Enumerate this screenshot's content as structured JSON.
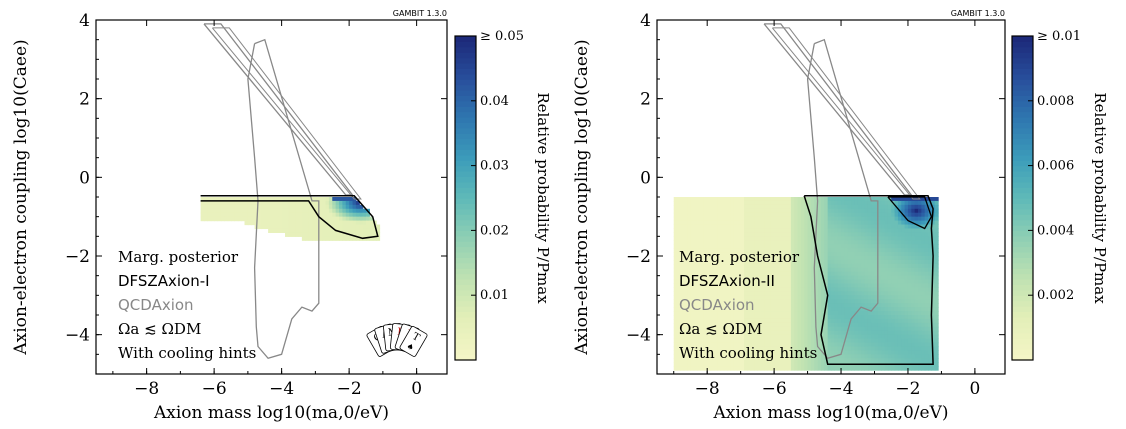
{
  "colors": {
    "cmap": [
      "#f4f5c6",
      "#e3efb8",
      "#bfe2b2",
      "#8fcfb4",
      "#5fbab8",
      "#3c9cba",
      "#2f77b0",
      "#284f9c",
      "#1d2a7a"
    ],
    "qcd_contour": "#888888",
    "dfsz_contour": "#000000"
  },
  "chart_data": [
    {
      "type": "heatmap",
      "gambit_label": "GAMBIT 1.3.0",
      "xlabel": "Axion mass log10(ma,0/eV)",
      "ylabel": "Axion-electron coupling log10(Caee)",
      "xlim": [
        -9.5,
        0.9
      ],
      "ylim": [
        -5.0,
        4.0
      ],
      "xticks": [
        "−8",
        "−6",
        "−4",
        "−2",
        "0"
      ],
      "xtick_values": [
        -8,
        -6,
        -4,
        -2,
        0
      ],
      "yticks": [
        "−4",
        "−2",
        "0",
        "2",
        "4"
      ],
      "ytick_values": [
        -4,
        -2,
        0,
        2,
        4
      ],
      "colorbar": {
        "label": "Relative probability P/Pmax",
        "range": [
          0,
          0.05
        ],
        "ticks": [
          "0.01",
          "0.02",
          "0.03",
          "0.04",
          "≥ 0.05"
        ],
        "tick_values": [
          0.01,
          0.02,
          0.03,
          0.04,
          0.05
        ]
      },
      "legend": {
        "placement": "lower-left",
        "lines": [
          {
            "text": "Marg. posterior",
            "style": "serif",
            "color": "#000000"
          },
          {
            "text": "DFSZAxion-I",
            "style": "sans",
            "color": "#000000"
          },
          {
            "text": "QCDAxion",
            "style": "sans",
            "color": "#888888"
          },
          {
            "text": "Ωa ≲ ΩDM",
            "style": "serif",
            "color": "#000000"
          },
          {
            "text": "With cooling hints",
            "style": "serif",
            "color": "#000000"
          }
        ]
      },
      "has_logo": true,
      "logo_text": "GAMBIT",
      "region": {
        "top": -0.5,
        "xmin": -6.4,
        "bottom_boundary": [
          [
            -5.5,
            -1.0
          ],
          [
            -4.5,
            -1.3
          ],
          [
            -3.5,
            -1.5
          ],
          [
            -2.5,
            -1.55
          ],
          [
            -1.5,
            -1.6
          ],
          [
            -1.1,
            -1.6
          ]
        ],
        "right_boundary": [
          [
            -1.9,
            -0.5
          ],
          [
            -1.5,
            -0.8
          ],
          [
            -1.2,
            -1.2
          ],
          [
            -1.1,
            -1.6
          ]
        ],
        "hot_spot": {
          "x": -1.7,
          "y": -0.6,
          "value": 0.05
        }
      },
      "dfsz_contour": [
        [
          -6.4,
          -0.47
        ],
        [
          -1.85,
          -0.47
        ],
        [
          -1.3,
          -1.0
        ],
        [
          -1.15,
          -1.5
        ],
        [
          -1.6,
          -1.55
        ],
        [
          -2.4,
          -1.35
        ],
        [
          -2.9,
          -1.0
        ],
        [
          -3.2,
          -0.6
        ],
        [
          -6.4,
          -0.6
        ]
      ],
      "qcd_outline": [
        [
          -4.8,
          3.4
        ],
        [
          -4.5,
          3.5
        ],
        [
          -3.1,
          -0.6
        ],
        [
          -2.9,
          -0.6
        ],
        [
          -2.9,
          -3.2
        ],
        [
          -3.1,
          -3.4
        ],
        [
          -3.4,
          -3.3
        ],
        [
          -3.7,
          -3.6
        ],
        [
          -4.0,
          -4.5
        ],
        [
          -4.4,
          -4.6
        ],
        [
          -4.7,
          -4.3
        ],
        [
          -4.75,
          -3.8
        ],
        [
          -4.8,
          -2.3
        ],
        [
          -4.7,
          -0.6
        ],
        [
          -4.8,
          0.5
        ],
        [
          -5.0,
          2.5
        ],
        [
          -4.8,
          3.4
        ]
      ],
      "qcd_band": [
        [
          -6.3,
          3.9
        ],
        [
          -5.8,
          3.9
        ],
        [
          -1.9,
          -0.45
        ],
        [
          -2.1,
          -0.45
        ],
        [
          -6.3,
          3.9
        ]
      ]
    },
    {
      "type": "heatmap",
      "gambit_label": "GAMBIT 1.3.0",
      "xlabel": "Axion mass log10(ma,0/eV)",
      "ylabel": "Axion-electron coupling log10(Caee)",
      "xlim": [
        -9.5,
        0.9
      ],
      "ylim": [
        -5.0,
        4.0
      ],
      "xticks": [
        "−8",
        "−6",
        "−4",
        "−2",
        "0"
      ],
      "xtick_values": [
        -8,
        -6,
        -4,
        -2,
        0
      ],
      "yticks": [
        "−4",
        "−2",
        "0",
        "2",
        "4"
      ],
      "ytick_values": [
        -4,
        -2,
        0,
        2,
        4
      ],
      "colorbar": {
        "label": "Relative probability P/Pmax",
        "range": [
          0,
          0.01
        ],
        "ticks": [
          "0.002",
          "0.004",
          "0.006",
          "0.008",
          "≥ 0.01"
        ],
        "tick_values": [
          0.002,
          0.004,
          0.006,
          0.008,
          0.01
        ]
      },
      "legend": {
        "placement": "lower-left",
        "lines": [
          {
            "text": "Marg. posterior",
            "style": "serif",
            "color": "#000000"
          },
          {
            "text": "DFSZAxion-II",
            "style": "sans",
            "color": "#000000"
          },
          {
            "text": "QCDAxion",
            "style": "sans",
            "color": "#888888"
          },
          {
            "text": "Ωa ≲ ΩDM",
            "style": "serif",
            "color": "#000000"
          },
          {
            "text": "With cooling hints",
            "style": "serif",
            "color": "#000000"
          }
        ]
      },
      "has_logo": false,
      "logo_text": "",
      "region": {
        "top": -0.5,
        "xmin": -9.0,
        "xmax": -1.2,
        "bottom": -4.8,
        "bright_edge_x": -4.5,
        "hot_spot": {
          "x": -1.8,
          "y": -0.8,
          "value": 0.01
        }
      },
      "dfsz_contour": [
        [
          -5.1,
          -0.47
        ],
        [
          -1.4,
          -0.47
        ],
        [
          -1.25,
          -0.8
        ],
        [
          -1.3,
          -1.3
        ],
        [
          -1.25,
          -2.0
        ],
        [
          -1.3,
          -3.5
        ],
        [
          -1.25,
          -4.75
        ],
        [
          -4.4,
          -4.75
        ],
        [
          -4.6,
          -4.0
        ],
        [
          -4.4,
          -3.0
        ],
        [
          -4.7,
          -2.0
        ],
        [
          -4.9,
          -1.0
        ],
        [
          -5.1,
          -0.47
        ]
      ],
      "dfsz_inner": [
        [
          -2.6,
          -0.5
        ],
        [
          -1.5,
          -0.5
        ],
        [
          -1.3,
          -1.0
        ],
        [
          -1.5,
          -1.3
        ],
        [
          -2.0,
          -1.1
        ],
        [
          -2.6,
          -0.5
        ]
      ],
      "qcd_outline": [
        [
          -4.8,
          3.4
        ],
        [
          -4.5,
          3.5
        ],
        [
          -3.1,
          -0.6
        ],
        [
          -2.9,
          -0.6
        ],
        [
          -2.9,
          -3.2
        ],
        [
          -3.1,
          -3.4
        ],
        [
          -3.4,
          -3.3
        ],
        [
          -3.7,
          -3.6
        ],
        [
          -4.0,
          -4.5
        ],
        [
          -4.4,
          -4.6
        ],
        [
          -4.7,
          -4.3
        ],
        [
          -4.75,
          -3.8
        ],
        [
          -4.8,
          -2.3
        ],
        [
          -4.7,
          -0.6
        ],
        [
          -4.8,
          0.5
        ],
        [
          -5.0,
          2.5
        ],
        [
          -4.8,
          3.4
        ]
      ],
      "qcd_band": [
        [
          -6.3,
          3.9
        ],
        [
          -5.8,
          3.9
        ],
        [
          -1.9,
          -0.45
        ],
        [
          -2.1,
          -0.45
        ],
        [
          -6.3,
          3.9
        ]
      ]
    }
  ]
}
